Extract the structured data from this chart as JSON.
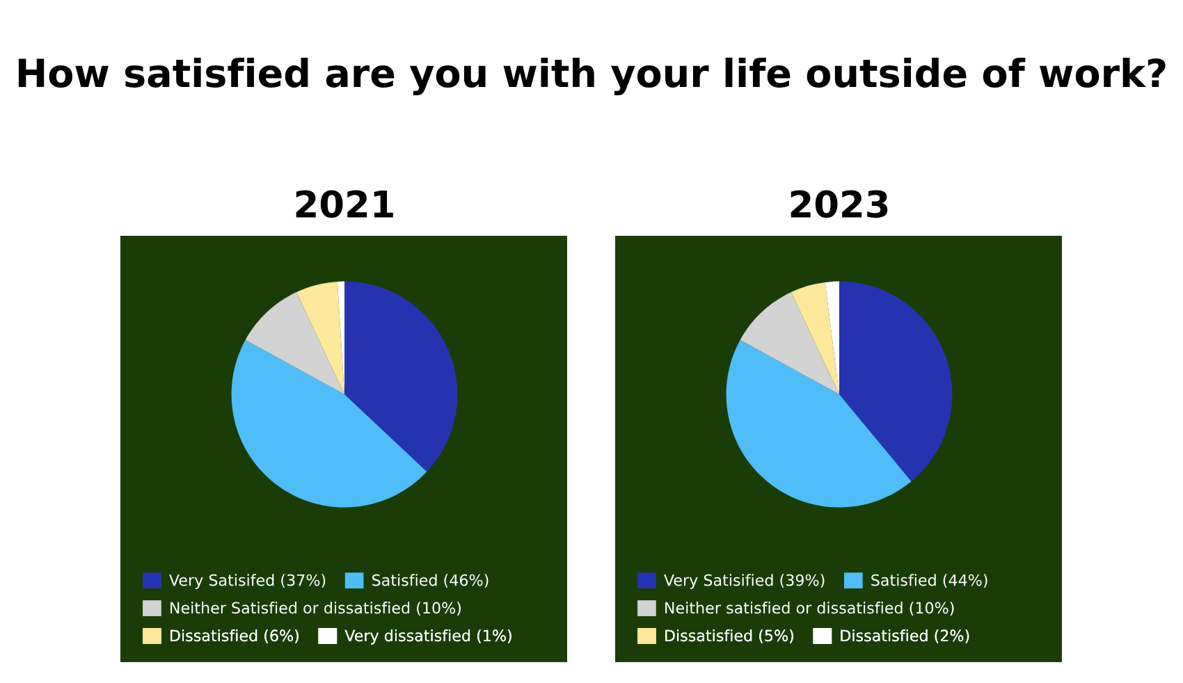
{
  "chart_data": [
    {
      "type": "pie",
      "title": "2021",
      "annotations": [
        "How satisfied are you with your life outside of work?"
      ],
      "categories": [
        "Very Satisifed (37%)",
        "Satisfied (46%)",
        "Neither Satisfied or dissatisfied (10%)",
        "Dissatisfied (6%)",
        "Very dissatisfied (1%)"
      ],
      "values": [
        37,
        46,
        10,
        6,
        1
      ],
      "colors": [
        "#2533b0",
        "#4fbdf7",
        "#d3d3d3",
        "#fce79a",
        "#ffffff"
      ],
      "legend": "bottom"
    },
    {
      "type": "pie",
      "title": "2023",
      "categories": [
        "Very Satisified (39%)",
        "Satisfied (44%)",
        "Neither satisfied or dissatisfied (10%)",
        "Dissatisfied (5%)",
        "Dissatisfied (2%)"
      ],
      "values": [
        39,
        44,
        10,
        5,
        2
      ],
      "colors": [
        "#2533b0",
        "#4fbdf7",
        "#d3d3d3",
        "#fce79a",
        "#ffffff"
      ],
      "legend": "bottom"
    }
  ]
}
